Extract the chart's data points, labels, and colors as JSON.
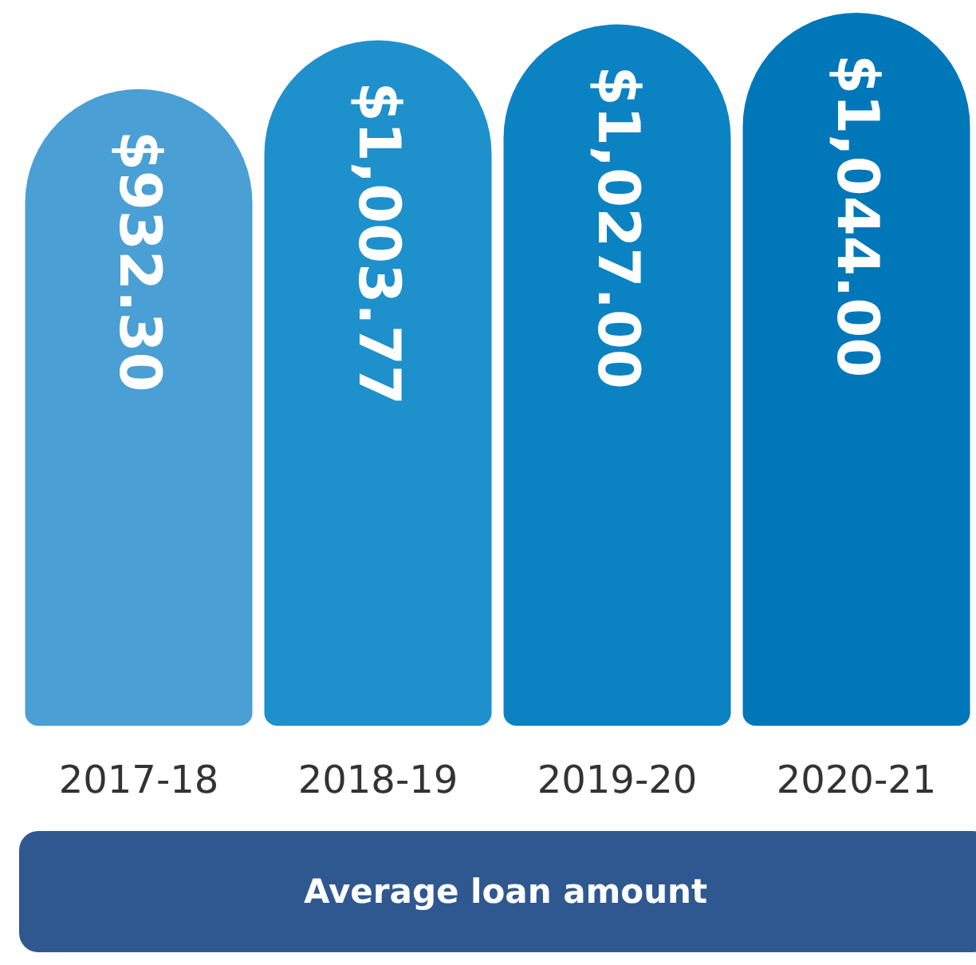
{
  "chart_data": {
    "type": "bar",
    "title": "Average loan amount",
    "categories": [
      "2017-18",
      "2018-19",
      "2019-20",
      "2020-21"
    ],
    "values": [
      932.3,
      1003.77,
      1027.0,
      1044.0
    ],
    "value_labels": [
      "$932.30",
      "$1,003.77",
      "$1,027.00",
      "$1,044.00"
    ],
    "colors": [
      "#4a9fd4",
      "#1e90cc",
      "#0b82c2",
      "#0077b8"
    ],
    "ylim": [
      0,
      1044
    ]
  }
}
